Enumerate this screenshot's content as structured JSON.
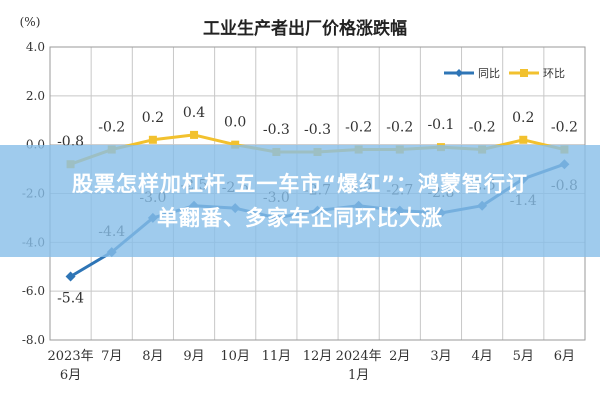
{
  "chart_data": {
    "type": "line",
    "title": "工业生产者出厂价格涨跌幅",
    "unit_label": "(%)",
    "categories": [
      [
        "2023年",
        "6月"
      ],
      [
        "7月"
      ],
      [
        "8月"
      ],
      [
        "9月"
      ],
      [
        "10月"
      ],
      [
        "11月"
      ],
      [
        "12月"
      ],
      [
        "2024年",
        "1月"
      ],
      [
        "2月"
      ],
      [
        "3月"
      ],
      [
        "4月"
      ],
      [
        "5月"
      ],
      [
        "6月"
      ]
    ],
    "ylim": [
      -8.0,
      4.0
    ],
    "yticks": [
      "4.0",
      "2.0",
      "0.0",
      "-2.0",
      "-4.0",
      "-6.0",
      "-8.0"
    ],
    "grid": true,
    "legend_position": "top-right",
    "series": [
      {
        "name": "同比",
        "color": "#2e75b6",
        "values": [
          -5.4,
          -4.4,
          -3.0,
          -2.5,
          -2.6,
          -3.0,
          -2.7,
          -2.5,
          -2.7,
          -2.8,
          -2.5,
          -1.4,
          -0.8
        ],
        "labels": [
          "-5.4",
          "-4.4",
          "-3.0",
          "-2.5",
          "-2.6",
          "-3.0",
          "-2.7",
          "-2.5",
          "-2.7",
          "-2.8",
          "-2.5",
          "-1.4",
          "-0.8"
        ]
      },
      {
        "name": "环比",
        "color": "#f2c12e",
        "values": [
          -0.8,
          -0.2,
          0.2,
          0.4,
          0.0,
          -0.3,
          -0.3,
          -0.2,
          -0.2,
          -0.1,
          -0.2,
          0.2,
          -0.2
        ],
        "labels": [
          "-0.8",
          "-0.2",
          "0.2",
          "0.4",
          "0.0",
          "-0.3",
          "-0.3",
          "-0.2",
          "-0.2",
          "-0.1",
          "-0.2",
          "0.2",
          "-0.2"
        ]
      }
    ]
  },
  "overlay": {
    "headline_line1": "股票怎样加杠杆 五一车市“爆红”：鸿蒙智行订",
    "headline_line2": "单翻番、多家车企同环比大涨"
  }
}
